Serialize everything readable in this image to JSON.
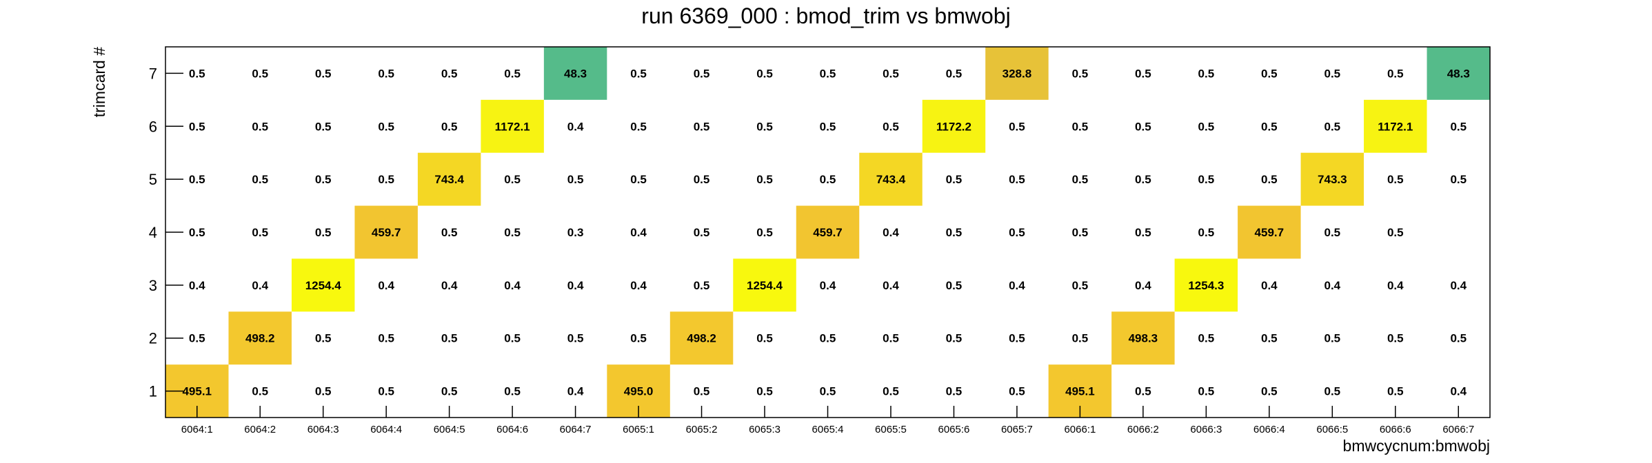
{
  "chart_data": {
    "type": "heatmap",
    "title": "run 6369_000 : bmod_trim vs bmwobj",
    "xlabel": "bmwcycnum:bmwobj",
    "ylabel": "trimcard #",
    "x_categories": [
      "6064:1",
      "6064:2",
      "6064:3",
      "6064:4",
      "6064:5",
      "6064:6",
      "6064:7",
      "6065:1",
      "6065:2",
      "6065:3",
      "6065:4",
      "6065:5",
      "6065:6",
      "6065:7",
      "6066:1",
      "6066:2",
      "6066:3",
      "6066:4",
      "6066:5",
      "6066:6",
      "6066:7"
    ],
    "y_categories": [
      "1",
      "2",
      "3",
      "4",
      "5",
      "6",
      "7"
    ],
    "values": [
      [
        "495.1",
        "0.5",
        "0.5",
        "0.5",
        "0.5",
        "0.5",
        "0.4",
        "495.0",
        "0.5",
        "0.5",
        "0.5",
        "0.5",
        "0.5",
        "0.5",
        "495.1",
        "0.5",
        "0.5",
        "0.5",
        "0.5",
        "0.5",
        "0.4"
      ],
      [
        "0.5",
        "498.2",
        "0.5",
        "0.5",
        "0.5",
        "0.5",
        "0.5",
        "0.5",
        "498.2",
        "0.5",
        "0.5",
        "0.5",
        "0.5",
        "0.5",
        "0.5",
        "498.3",
        "0.5",
        "0.5",
        "0.5",
        "0.5",
        "0.5"
      ],
      [
        "0.4",
        "0.4",
        "1254.4",
        "0.4",
        "0.4",
        "0.4",
        "0.4",
        "0.4",
        "0.5",
        "1254.4",
        "0.4",
        "0.4",
        "0.5",
        "0.4",
        "0.5",
        "0.4",
        "1254.3",
        "0.4",
        "0.4",
        "0.4",
        "0.4"
      ],
      [
        "0.5",
        "0.5",
        "0.5",
        "459.7",
        "0.5",
        "0.5",
        "0.3",
        "0.4",
        "0.5",
        "0.5",
        "459.7",
        "0.4",
        "0.5",
        "0.5",
        "0.5",
        "0.5",
        "0.5",
        "459.7",
        "0.5",
        "0.5",
        ""
      ],
      [
        "0.5",
        "0.5",
        "0.5",
        "0.5",
        "743.4",
        "0.5",
        "0.5",
        "0.5",
        "0.5",
        "0.5",
        "0.5",
        "743.4",
        "0.5",
        "0.5",
        "0.5",
        "0.5",
        "0.5",
        "0.5",
        "743.3",
        "0.5",
        "0.5"
      ],
      [
        "0.5",
        "0.5",
        "0.5",
        "0.5",
        "0.5",
        "1172.1",
        "0.4",
        "0.5",
        "0.5",
        "0.5",
        "0.5",
        "0.5",
        "1172.2",
        "0.5",
        "0.5",
        "0.5",
        "0.5",
        "0.5",
        "0.5",
        "1172.1",
        "0.5"
      ],
      [
        "0.5",
        "0.5",
        "0.5",
        "0.5",
        "0.5",
        "0.5",
        "48.3",
        "0.5",
        "0.5",
        "0.5",
        "0.5",
        "0.5",
        "0.5",
        "328.8",
        "0.5",
        "0.5",
        "0.5",
        "0.5",
        "0.5",
        "0.5",
        "48.3"
      ]
    ],
    "color_scale": {
      "low": "#55bb8a",
      "mid": "#f2c232",
      "high": "#f8f80e",
      "min": 48.3,
      "max": 1254.4,
      "empty": "#ffffff"
    },
    "grid": false,
    "legend": "none"
  }
}
